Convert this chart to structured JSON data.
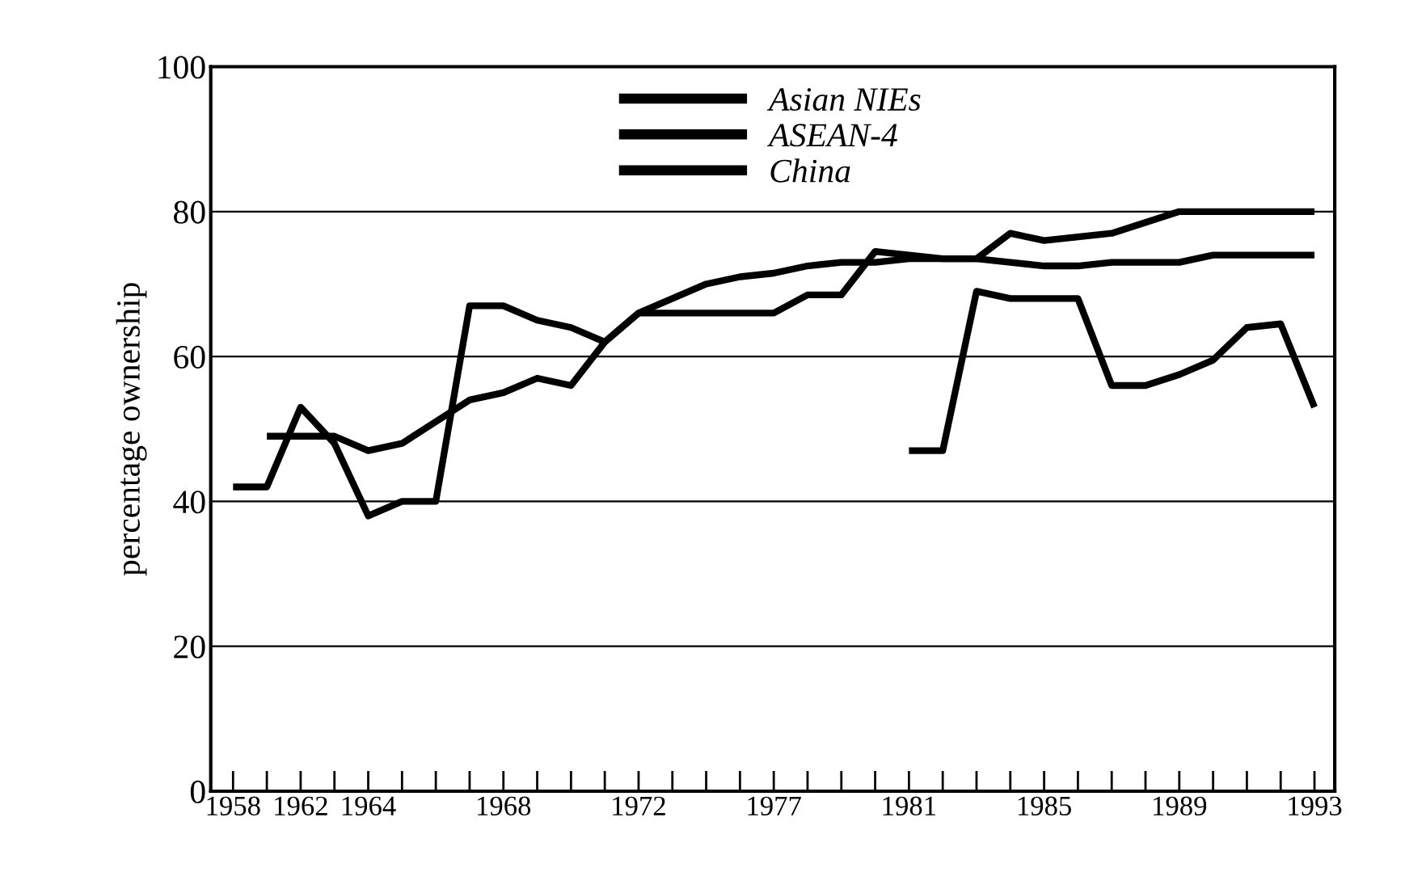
{
  "chart_data": {
    "type": "line",
    "ylabel": "percentage ownership",
    "categories": [
      "1958",
      null,
      "1962",
      null,
      "1964",
      null,
      null,
      null,
      "1968",
      null,
      null,
      null,
      "1972",
      null,
      null,
      null,
      "1977",
      null,
      null,
      null,
      "1981",
      null,
      null,
      null,
      "1985",
      null,
      null,
      null,
      "1989",
      null,
      null,
      null,
      "1993"
    ],
    "series": [
      {
        "name": "Asian NIEs",
        "color": "#000000",
        "values": [
          42,
          42,
          53,
          48,
          38,
          40,
          40,
          67,
          67,
          65,
          64,
          62,
          66,
          66,
          66,
          66,
          66,
          68.5,
          68.5,
          74.5,
          74,
          73.5,
          73.5,
          77,
          76,
          76.5,
          77,
          78.5,
          80,
          80,
          80,
          80,
          80
        ]
      },
      {
        "name": "ASEAN-4",
        "color": "#000000",
        "values": [
          null,
          49,
          49,
          49,
          47,
          48,
          51,
          54,
          55,
          57,
          56,
          62,
          66,
          68,
          70,
          71,
          71.5,
          72.5,
          73,
          73,
          73.5,
          73.5,
          73.5,
          73,
          72.5,
          72.5,
          73,
          73,
          73,
          74,
          74,
          74,
          74
        ]
      },
      {
        "name": "China",
        "color": "#000000",
        "values": [
          null,
          null,
          null,
          null,
          null,
          null,
          null,
          null,
          null,
          null,
          null,
          null,
          null,
          null,
          null,
          null,
          null,
          null,
          null,
          null,
          47,
          47,
          69,
          68,
          68,
          68,
          56,
          56,
          57.5,
          59.5,
          64,
          64.5,
          53
        ]
      }
    ],
    "ylim": [
      0,
      100
    ],
    "yticks": [
      0,
      20,
      40,
      60,
      80,
      100
    ],
    "grid": "y",
    "legend": "top",
    "marker": "none",
    "line_style": "solid"
  }
}
